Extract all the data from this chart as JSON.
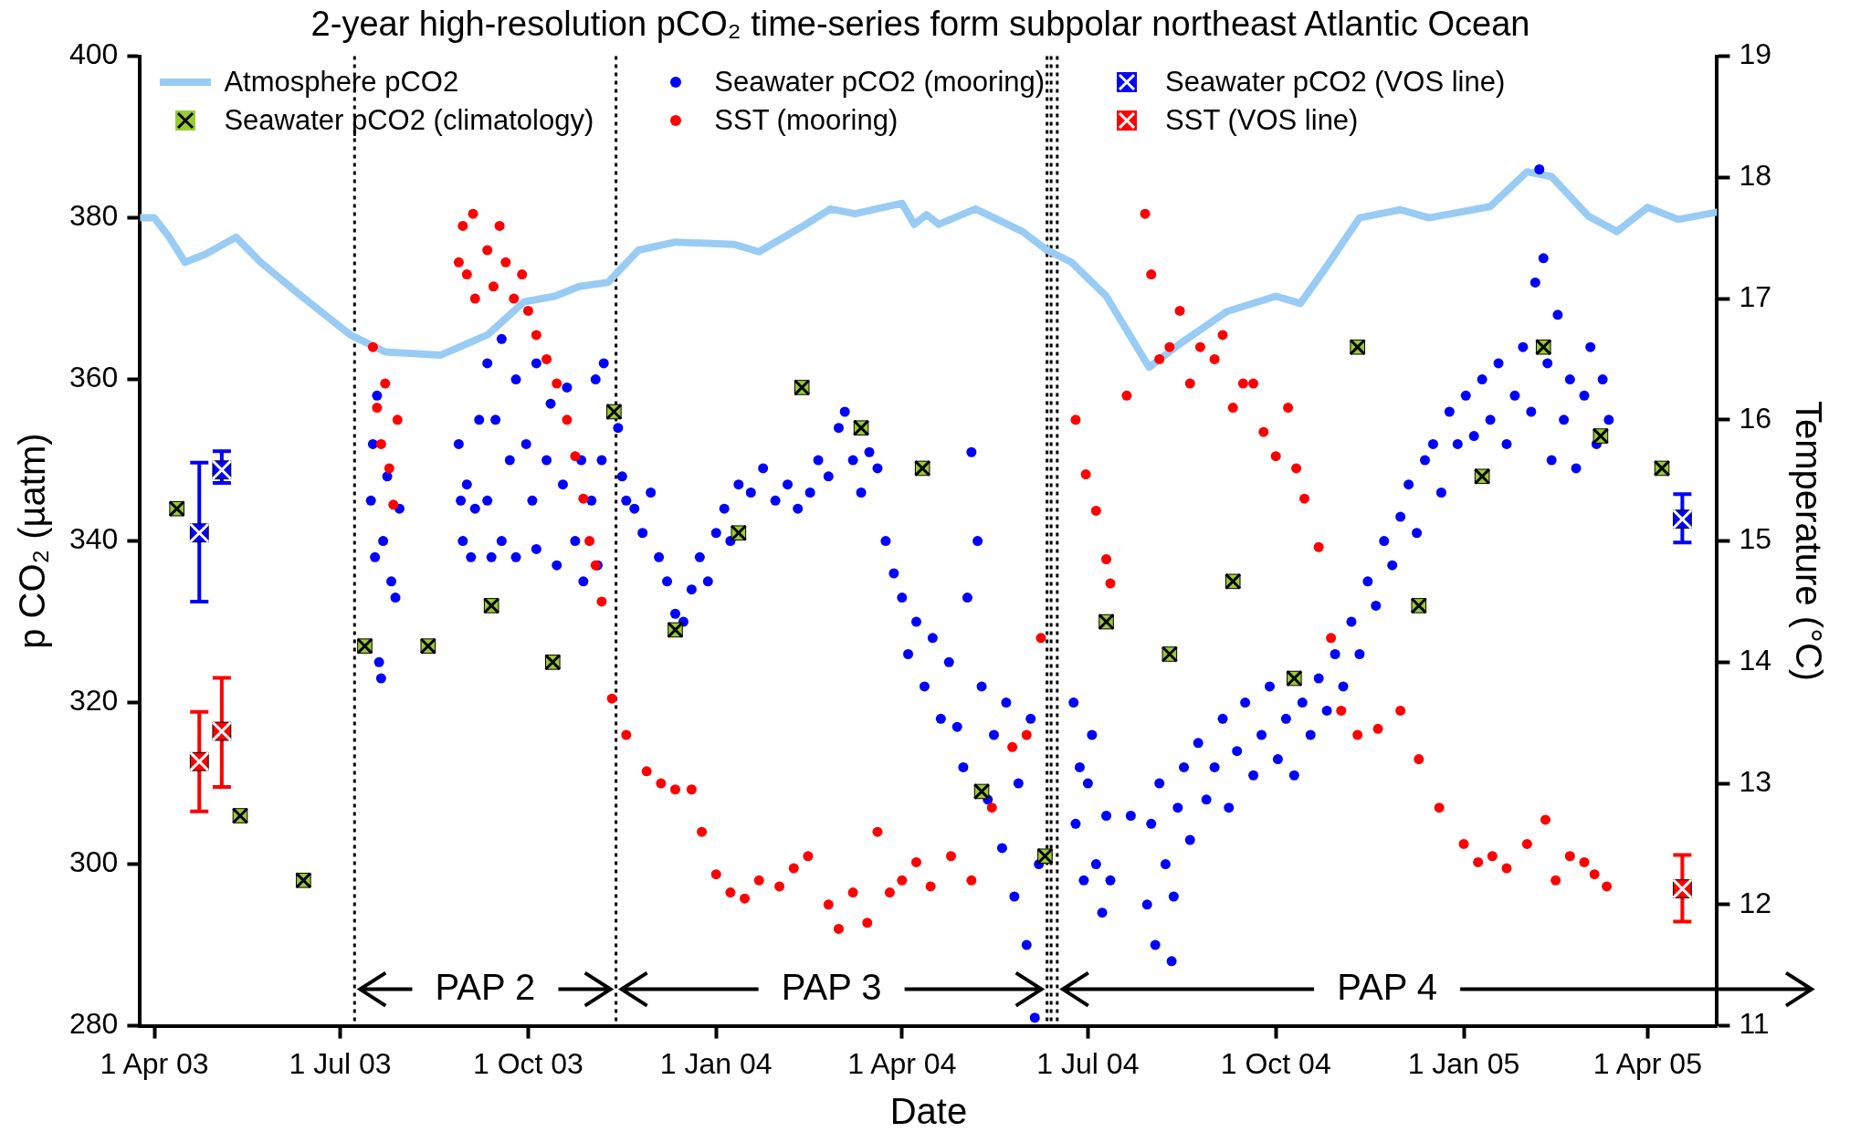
{
  "chart_data": {
    "type": "scatter",
    "title": "2-year high-resolution pCO₂ time-series form subpolar northeast Atlantic Ocean",
    "xlabel": "Date",
    "ylabel": "p CO₂ (µatm)",
    "y2label": "Temperature (°C)",
    "xlim": [
      "2003-03-25",
      "2005-05-05"
    ],
    "xticks": [
      {
        "value": "2003-04-01",
        "label": "1 Apr 03"
      },
      {
        "value": "2003-07-01",
        "label": "1 Jul 03"
      },
      {
        "value": "2003-10-01",
        "label": "1 Oct 03"
      },
      {
        "value": "2004-01-01",
        "label": "1 Jan 04"
      },
      {
        "value": "2004-04-01",
        "label": "1 Apr 04"
      },
      {
        "value": "2004-07-01",
        "label": "1 Jul 04"
      },
      {
        "value": "2004-10-01",
        "label": "1 Oct 04"
      },
      {
        "value": "2005-01-01",
        "label": "1 Jan 05"
      },
      {
        "value": "2005-04-01",
        "label": "1 Apr 05"
      }
    ],
    "ylim": [
      280,
      400
    ],
    "yticks": [
      280,
      300,
      320,
      340,
      360,
      380,
      400
    ],
    "y2lim": [
      11,
      19
    ],
    "y2ticks": [
      11,
      12,
      13,
      14,
      15,
      16,
      17,
      18,
      19
    ],
    "legend": "top",
    "grid": false,
    "series": [
      {
        "name": "Atmosphere pCO2",
        "type": "line",
        "marker": "none",
        "color": "#99ccf5",
        "x": [
          "2003-03-25",
          "2003-04-01",
          "2003-04-08",
          "2003-04-16",
          "2003-04-26",
          "2003-05-11",
          "2003-05-23",
          "2003-06-12",
          "2003-07-06",
          "2003-07-23",
          "2003-08-19",
          "2003-09-11",
          "2003-09-29",
          "2003-10-14",
          "2003-10-26",
          "2003-11-09",
          "2003-11-24",
          "2003-12-12",
          "2004-01-10",
          "2004-01-22",
          "2004-02-14",
          "2004-02-26",
          "2004-03-09",
          "2004-04-01",
          "2004-04-07",
          "2004-04-13",
          "2004-04-19",
          "2004-05-07",
          "2004-05-30",
          "2004-06-11",
          "2004-06-23",
          "2004-07-10",
          "2004-07-31",
          "2004-08-15",
          "2004-09-07",
          "2004-10-01",
          "2004-10-13",
          "2004-10-24",
          "2004-11-11",
          "2004-12-01",
          "2004-12-15",
          "2005-01-14",
          "2005-02-01",
          "2005-02-13",
          "2005-03-03",
          "2005-03-17",
          "2005-04-01",
          "2005-04-16",
          "2005-05-05"
        ],
        "values": [
          380,
          380,
          377.7,
          374.5,
          375.5,
          377.6,
          374.5,
          370.3,
          365.5,
          363.4,
          363,
          365.5,
          369.6,
          370.3,
          371.5,
          372,
          376,
          377,
          376.7,
          375.8,
          379.2,
          381.1,
          380.5,
          381.8,
          379.2,
          380.4,
          379.2,
          381.1,
          378.3,
          376,
          374.5,
          370.3,
          361.5,
          364.4,
          368.4,
          370.3,
          369.4,
          373.3,
          380,
          381,
          380,
          381.4,
          385.7,
          385.1,
          380.2,
          378.3,
          381.3,
          379.8,
          380.7
        ]
      },
      {
        "name": "Seawater pCO2 (climatology)",
        "marker": "square",
        "color": "#99cc33",
        "x": [
          "2003-04-12",
          "2003-05-13",
          "2003-06-13",
          "2003-07-13",
          "2003-08-13",
          "2003-09-13",
          "2003-10-13",
          "2003-11-12",
          "2003-12-12",
          "2004-01-12",
          "2004-02-12",
          "2004-03-12",
          "2004-04-11",
          "2004-05-10",
          "2004-06-10",
          "2004-07-10",
          "2004-08-10",
          "2004-09-10",
          "2004-10-10",
          "2004-11-10",
          "2004-12-10",
          "2005-01-10",
          "2005-02-09",
          "2005-03-09",
          "2005-04-08"
        ],
        "values": [
          344,
          306,
          298,
          327,
          327,
          332,
          325,
          356,
          329,
          341,
          359,
          354,
          349,
          309,
          301,
          330,
          326,
          335,
          323,
          364,
          332,
          348,
          364,
          353,
          349
        ]
      },
      {
        "name": "Seawater pCO2 (mooring)",
        "marker": "circle",
        "color": "#0000ff",
        "x": [
          "2003-07-16",
          "2003-07-17",
          "2003-07-18",
          "2003-07-19",
          "2003-07-20",
          "2003-07-21",
          "2003-07-22",
          "2003-07-24",
          "2003-07-26",
          "2003-07-28",
          "2003-07-30",
          "2003-08-28",
          "2003-08-29",
          "2003-08-30",
          "2003-09-01",
          "2003-09-03",
          "2003-09-05",
          "2003-09-07",
          "2003-09-11",
          "2003-09-11",
          "2003-09-13",
          "2003-09-15",
          "2003-09-18",
          "2003-09-18",
          "2003-09-22",
          "2003-09-25",
          "2003-09-25",
          "2003-09-30",
          "2003-10-03",
          "2003-10-05",
          "2003-10-05",
          "2003-10-10",
          "2003-10-12",
          "2003-10-15",
          "2003-10-18",
          "2003-10-20",
          "2003-10-24",
          "2003-10-27",
          "2003-10-28",
          "2003-11-01",
          "2003-11-03",
          "2003-11-04",
          "2003-11-06",
          "2003-11-07",
          "2003-11-14",
          "2003-11-16",
          "2003-11-18",
          "2003-11-22",
          "2003-11-26",
          "2003-11-30",
          "2003-12-04",
          "2003-12-08",
          "2003-12-12",
          "2003-12-16",
          "2003-12-20",
          "2003-12-24",
          "2003-12-28",
          "2004-01-01",
          "2004-01-05",
          "2004-01-08",
          "2004-01-12",
          "2004-01-18",
          "2004-01-24",
          "2004-01-30",
          "2004-02-05",
          "2004-02-10",
          "2004-02-16",
          "2004-02-20",
          "2004-02-25",
          "2004-03-01",
          "2004-03-04",
          "2004-03-08",
          "2004-03-12",
          "2004-03-16",
          "2004-03-20",
          "2004-03-24",
          "2004-03-28",
          "2004-04-01",
          "2004-04-04",
          "2004-04-08",
          "2004-04-12",
          "2004-04-16",
          "2004-04-20",
          "2004-04-24",
          "2004-04-28",
          "2004-05-01",
          "2004-05-03",
          "2004-05-05",
          "2004-05-08",
          "2004-05-10",
          "2004-05-13",
          "2004-05-16",
          "2004-05-20",
          "2004-05-22",
          "2004-05-26",
          "2004-05-28",
          "2004-06-01",
          "2004-06-03",
          "2004-06-05",
          "2004-06-07",
          "2004-06-24",
          "2004-06-25",
          "2004-06-27",
          "2004-06-29",
          "2004-07-01",
          "2004-07-03",
          "2004-07-05",
          "2004-07-08",
          "2004-07-10",
          "2004-07-12",
          "2004-07-22",
          "2004-07-30",
          "2004-08-01",
          "2004-08-03",
          "2004-08-05",
          "2004-08-08",
          "2004-08-11",
          "2004-08-12",
          "2004-08-14",
          "2004-08-17",
          "2004-08-20",
          "2004-08-24",
          "2004-08-28",
          "2004-09-01",
          "2004-09-05",
          "2004-09-08",
          "2004-09-12",
          "2004-09-16",
          "2004-09-20",
          "2004-09-24",
          "2004-09-28",
          "2004-10-02",
          "2004-10-06",
          "2004-10-10",
          "2004-10-14",
          "2004-10-18",
          "2004-10-22",
          "2004-10-26",
          "2004-10-30",
          "2004-11-03",
          "2004-11-07",
          "2004-11-11",
          "2004-11-15",
          "2004-11-19",
          "2004-11-23",
          "2004-11-27",
          "2004-12-01",
          "2004-12-05",
          "2004-12-09",
          "2004-12-13",
          "2004-12-17",
          "2004-12-21",
          "2004-12-25",
          "2004-12-29",
          "2005-01-02",
          "2005-01-06",
          "2005-01-10",
          "2005-01-14",
          "2005-01-18",
          "2005-01-22",
          "2005-01-26",
          "2005-01-30",
          "2005-02-03",
          "2005-02-05",
          "2005-02-07",
          "2005-02-09",
          "2005-02-11",
          "2005-02-13",
          "2005-02-16",
          "2005-02-19",
          "2005-02-22",
          "2005-02-25",
          "2005-03-01",
          "2005-03-04",
          "2005-03-07",
          "2005-03-10",
          "2005-03-13"
        ],
        "values": [
          345,
          352,
          338,
          358,
          325,
          323,
          340,
          348,
          335,
          333,
          344,
          352,
          345,
          340,
          347,
          338,
          344,
          355,
          362,
          345,
          338,
          355,
          365,
          340,
          350,
          360,
          338,
          352,
          345,
          362,
          339,
          350,
          357,
          337,
          347,
          359,
          340,
          350,
          335,
          345,
          360,
          337,
          350,
          362,
          354,
          348,
          345,
          344,
          341,
          346,
          338,
          335,
          331,
          330,
          334,
          338,
          335,
          341,
          344,
          340,
          347,
          346,
          349,
          345,
          347,
          344,
          346,
          350,
          348,
          354,
          356,
          350,
          346,
          351,
          349,
          340,
          336,
          333,
          326,
          330,
          322,
          328,
          318,
          325,
          317,
          312,
          333,
          351,
          340,
          322,
          308,
          316,
          302,
          320,
          296,
          310,
          290,
          318,
          281,
          300,
          320,
          305,
          312,
          298,
          310,
          316,
          300,
          294,
          306,
          298,
          306,
          295,
          305,
          290,
          310,
          300,
          288,
          296,
          307,
          312,
          303,
          315,
          308,
          312,
          318,
          307,
          314,
          320,
          311,
          316,
          322,
          313,
          318,
          311,
          320,
          316,
          323,
          319,
          326,
          322,
          330,
          326,
          335,
          332,
          340,
          337,
          343,
          347,
          341,
          350,
          352,
          346,
          356,
          352,
          358,
          353,
          360,
          355,
          362,
          352,
          358,
          364,
          356,
          372,
          386,
          375,
          362,
          350,
          368,
          355,
          360,
          349,
          358,
          364,
          352,
          360,
          355
        ]
      },
      {
        "name": "SST (mooring)",
        "marker": "circle",
        "axis": "y2",
        "color": "#ff0000",
        "x": [
          "2003-07-17",
          "2003-07-19",
          "2003-07-21",
          "2003-07-23",
          "2003-07-25",
          "2003-07-27",
          "2003-07-29",
          "2003-08-28",
          "2003-08-30",
          "2003-09-01",
          "2003-09-04",
          "2003-09-05",
          "2003-09-11",
          "2003-09-14",
          "2003-09-17",
          "2003-09-20",
          "2003-09-24",
          "2003-09-28",
          "2003-10-01",
          "2003-10-05",
          "2003-10-10",
          "2003-10-15",
          "2003-10-20",
          "2003-10-24",
          "2003-10-28",
          "2003-10-31",
          "2003-11-03",
          "2003-11-06",
          "2003-11-11",
          "2003-11-18",
          "2003-11-28",
          "2003-12-05",
          "2003-12-12",
          "2003-12-20",
          "2003-12-25",
          "2004-01-01",
          "2004-01-08",
          "2004-01-15",
          "2004-01-22",
          "2004-02-01",
          "2004-02-08",
          "2004-02-15",
          "2004-02-25",
          "2004-03-01",
          "2004-03-08",
          "2004-03-15",
          "2004-03-20",
          "2004-03-26",
          "2004-04-01",
          "2004-04-08",
          "2004-04-15",
          "2004-04-25",
          "2004-05-05",
          "2004-05-15",
          "2004-05-25",
          "2004-06-01",
          "2004-06-08",
          "2004-06-25",
          "2004-06-30",
          "2004-07-05",
          "2004-07-10",
          "2004-07-12",
          "2004-07-20",
          "2004-07-29",
          "2004-08-01",
          "2004-08-05",
          "2004-08-10",
          "2004-08-15",
          "2004-08-20",
          "2004-08-25",
          "2004-09-01",
          "2004-09-05",
          "2004-09-10",
          "2004-09-15",
          "2004-09-20",
          "2004-09-25",
          "2004-10-01",
          "2004-10-07",
          "2004-10-11",
          "2004-10-15",
          "2004-10-22",
          "2004-10-28",
          "2004-11-02",
          "2004-11-10",
          "2004-11-20",
          "2004-12-01",
          "2004-12-10",
          "2004-12-20",
          "2005-01-01",
          "2005-01-08",
          "2005-01-15",
          "2005-01-22",
          "2005-02-01",
          "2005-02-10",
          "2005-02-15",
          "2005-02-22",
          "2005-03-01",
          "2005-03-06",
          "2005-03-12"
        ],
        "values": [
          16.6,
          16.1,
          15.8,
          16.3,
          15.6,
          15.3,
          16,
          17.3,
          17.6,
          17.2,
          17.7,
          17,
          17.4,
          17.1,
          17.6,
          17.3,
          17.0,
          17.2,
          16.9,
          16.7,
          16.5,
          16.3,
          16,
          15.7,
          15.35,
          15.0,
          14.8,
          14.5,
          13.7,
          13.4,
          13.1,
          13,
          12.95,
          12.95,
          12.6,
          12.25,
          12.1,
          12.05,
          12.2,
          12.15,
          12.3,
          12.4,
          12,
          11.8,
          12.1,
          11.85,
          12.6,
          12.1,
          12.2,
          12.35,
          12.15,
          12.4,
          12.2,
          12.8,
          13.3,
          13.4,
          14.2,
          16,
          15.55,
          15.25,
          14.85,
          14.65,
          16.2,
          17.7,
          17.2,
          16.5,
          16.6,
          16.9,
          16.3,
          16.6,
          16.5,
          16.7,
          16.1,
          16.3,
          16.3,
          15.9,
          15.7,
          16.1,
          15.6,
          15.35,
          14.95,
          14.2,
          13.6,
          13.4,
          13.45,
          13.6,
          13.2,
          12.8,
          12.5,
          12.35,
          12.4,
          12.3,
          12.5,
          12.7,
          12.2,
          12.4,
          12.35,
          12.25,
          12.15
        ]
      },
      {
        "name": "Seawater pCO2 (VOS line)",
        "marker": "square",
        "color": "#0000ff",
        "x": [
          "2003-04-23",
          "2003-05-04",
          "2005-04-18"
        ],
        "values": [
          341,
          348.8,
          342.7
        ],
        "errors": [
          [
            332.5,
            349.7
          ],
          [
            347.2,
            351.1
          ],
          [
            339.8,
            345.8
          ]
        ]
      },
      {
        "name": "SST (VOS line)",
        "marker": "square",
        "axis": "y2",
        "color": "#ff0000",
        "x": [
          "2003-04-23",
          "2003-05-04",
          "2005-04-18"
        ],
        "values": [
          13.18,
          13.43,
          12.13
        ],
        "errors": [
          [
            12.77,
            13.59
          ],
          [
            12.97,
            13.87
          ],
          [
            11.86,
            12.41
          ]
        ]
      }
    ],
    "ref_lines": [
      {
        "axis": "x",
        "value": "2003-07-08",
        "line_style": "dotted"
      },
      {
        "axis": "x",
        "value": "2003-11-13",
        "line_style": "dotted"
      },
      {
        "axis": "x",
        "value": "2004-06-11",
        "line_style": "dotted"
      },
      {
        "axis": "x",
        "value": "2004-06-13",
        "line_style": "dotted"
      },
      {
        "axis": "x",
        "value": "2004-06-16",
        "line_style": "dotted"
      }
    ],
    "annotations": [
      "PAP 2",
      "PAP 3",
      "PAP 4"
    ]
  }
}
